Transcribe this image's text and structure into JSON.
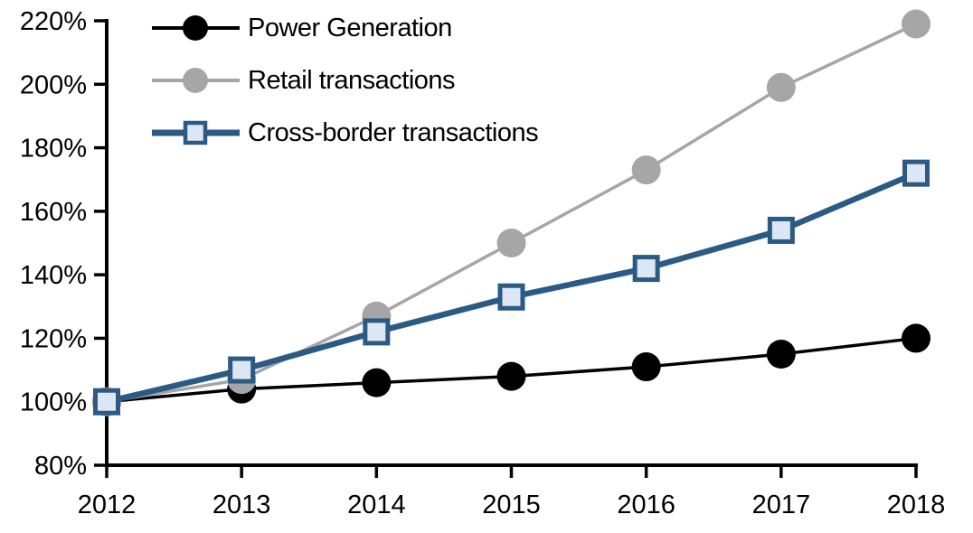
{
  "colors": {
    "background": "#FFFFFF",
    "axis": "#000000",
    "text": "#000000",
    "power_black": "#000000",
    "retail_gray": "#A6A6A6",
    "crossborder_blue": "#2B5A85",
    "square_fill": "#DCE7F3"
  },
  "chart_data": {
    "type": "line",
    "title": "",
    "xlabel": "",
    "ylabel": "",
    "categories": [
      "2012",
      "2013",
      "2014",
      "2015",
      "2016",
      "2017",
      "2018"
    ],
    "series": [
      {
        "name": "Power Generation",
        "values": [
          100,
          104,
          106,
          108,
          111,
          115,
          120
        ],
        "color": "#000000",
        "marker": "circle",
        "marker_fill": "#000000",
        "line_width": 3.5
      },
      {
        "name": "Retail transactions",
        "values": [
          100,
          107,
          127,
          150,
          173,
          199,
          219
        ],
        "color": "#A6A6A6",
        "marker": "circle",
        "marker_fill": "#A6A6A6",
        "line_width": 3.5
      },
      {
        "name": "Cross-border transactions",
        "values": [
          100,
          110,
          122,
          133,
          142,
          154,
          172
        ],
        "color": "#2B5A85",
        "marker": "square",
        "marker_fill": "#DCE7F3",
        "line_width": 6.5
      }
    ],
    "ylim": [
      80,
      220
    ],
    "ytick_step": 20,
    "ytick_labels": [
      "80%",
      "100%",
      "120%",
      "140%",
      "160%",
      "180%",
      "200%",
      "220%"
    ],
    "grid": false,
    "legend_position": "top-left"
  }
}
